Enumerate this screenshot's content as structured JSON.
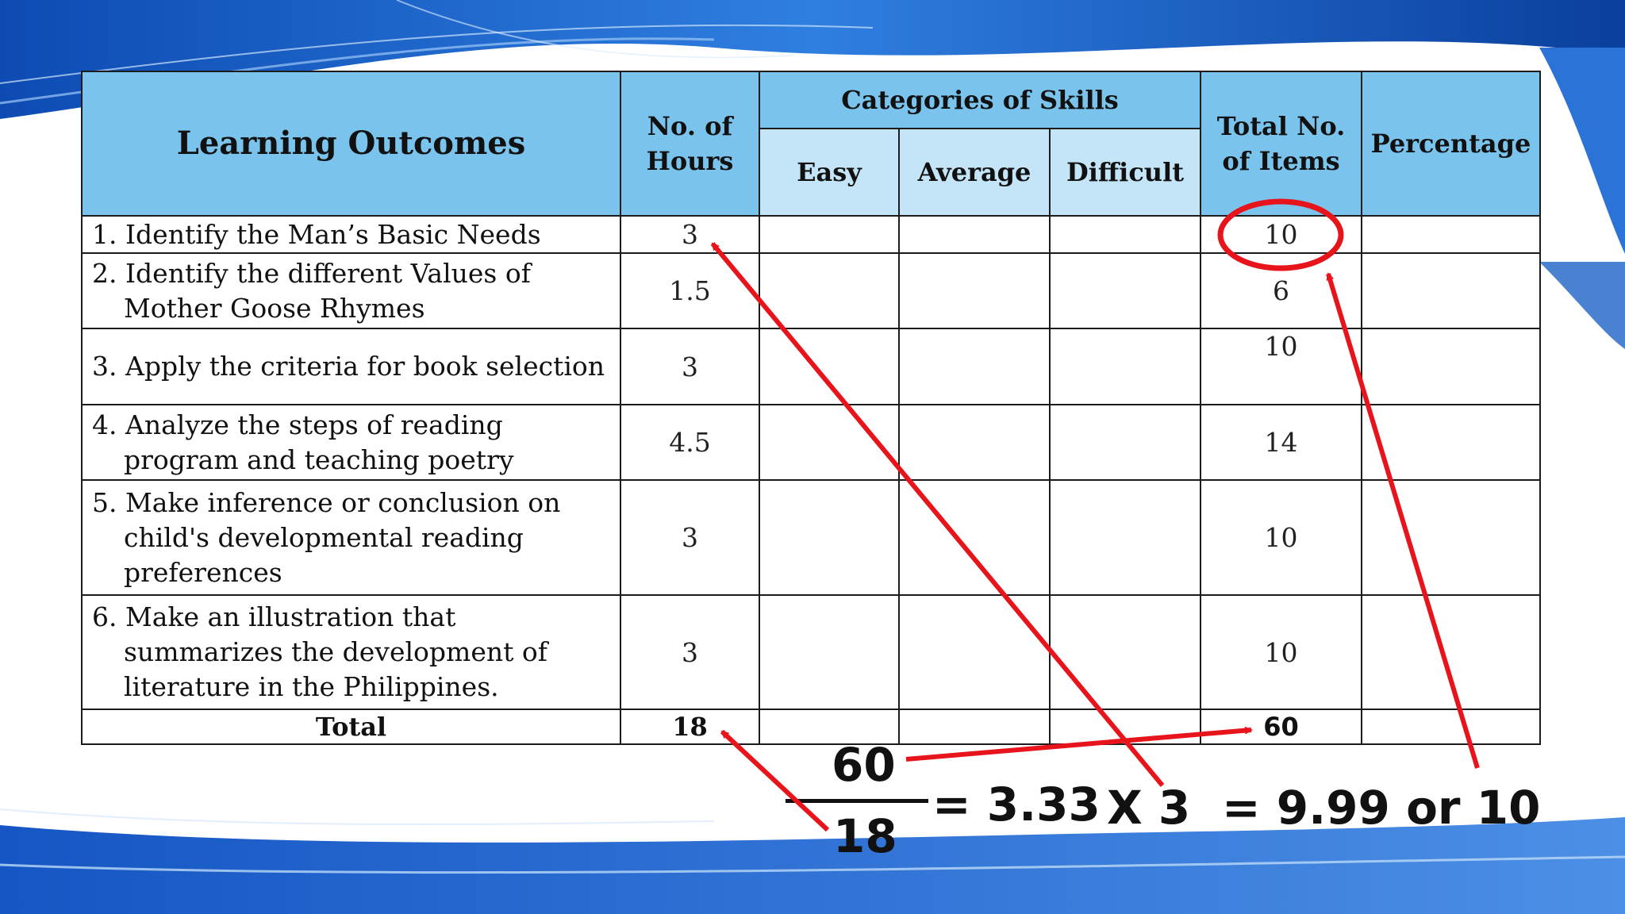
{
  "table": {
    "headers": {
      "learning_outcomes": "Learning Outcomes",
      "hours_line1": "No. of",
      "hours_line2": "Hours",
      "categories": "Categories of Skills",
      "easy": "Easy",
      "average": "Average",
      "difficult": "Difficult",
      "items_line1": "Total No.",
      "items_line2": "of Items",
      "percentage": "Percentage"
    },
    "rows": [
      {
        "num": "1.",
        "lines": [
          "Identify the Man’s Basic Needs"
        ],
        "hours": "3",
        "items": "10"
      },
      {
        "num": "2.",
        "lines": [
          "Identify the different Values of",
          "Mother Goose Rhymes"
        ],
        "hours": "1.5",
        "items": "6"
      },
      {
        "num": "3.",
        "lines": [
          "Apply the criteria for book selection"
        ],
        "hours": "3",
        "items": "10"
      },
      {
        "num": "4.",
        "lines": [
          "Analyze the steps of reading",
          "program and teaching poetry"
        ],
        "hours": "4.5",
        "items": "14"
      },
      {
        "num": "5.",
        "lines": [
          "Make inference or conclusion on",
          "child's developmental reading",
          "preferences"
        ],
        "hours": "3",
        "items": "10"
      },
      {
        "num": "6.",
        "lines": [
          "Make an illustration that",
          "summarizes the development of",
          "literature in the Philippines."
        ],
        "hours": "3",
        "items": "10"
      }
    ],
    "total": {
      "label": "Total",
      "hours": "18",
      "items": "60"
    }
  },
  "formula": {
    "numerator": "60",
    "denominator": "18",
    "result": "= 3.33",
    "times": "X 3",
    "final": "= 9.99 or 10"
  },
  "colors": {
    "header": "#79c3ec",
    "subheader": "#c4e4f7",
    "annotation": "#e8141b",
    "wave": "#1b63c6"
  }
}
